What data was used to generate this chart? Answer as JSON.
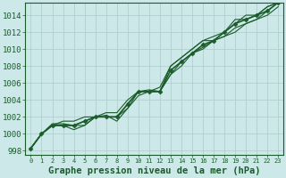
{
  "bg_color": "#cce8e8",
  "grid_color": "#aacccc",
  "line_color": "#1a5c2a",
  "xlabel": "Graphe pression niveau de la mer (hPa)",
  "xlabel_fontsize": 7.5,
  "ylabel_fontsize": 6.5,
  "xtick_fontsize": 5.0,
  "xlim": [
    -0.5,
    23.5
  ],
  "ylim": [
    997.5,
    1015.5
  ],
  "yticks": [
    998,
    1000,
    1002,
    1004,
    1006,
    1008,
    1010,
    1012,
    1014
  ],
  "xticks": [
    0,
    1,
    2,
    3,
    4,
    5,
    6,
    7,
    8,
    9,
    10,
    11,
    12,
    13,
    14,
    15,
    16,
    17,
    18,
    19,
    20,
    21,
    22,
    23
  ],
  "series1": {
    "x": [
      0,
      1,
      2,
      3,
      4,
      5,
      6,
      7,
      8,
      9,
      10,
      11,
      12,
      13,
      14,
      15,
      16,
      17,
      18,
      19,
      20,
      21,
      22,
      23
    ],
    "y": [
      998.3,
      1000.0,
      1001.0,
      1001.0,
      1001.0,
      1001.5,
      1002.0,
      1002.0,
      1002.0,
      1003.5,
      1005.0,
      1005.0,
      1005.0,
      1007.5,
      1008.5,
      1009.5,
      1010.5,
      1011.0,
      1012.0,
      1013.0,
      1013.5,
      1014.0,
      1014.5,
      1015.5
    ],
    "linewidth": 1.2,
    "marker": "D",
    "markersize": 2.5
  },
  "series2": {
    "x": [
      0,
      1,
      2,
      3,
      4,
      5,
      6,
      7,
      8,
      9,
      10,
      11,
      12,
      13,
      14,
      15,
      16,
      17,
      18,
      19,
      20,
      21,
      22,
      23
    ],
    "y": [
      998.3,
      1000.0,
      1001.2,
      1001.2,
      1001.0,
      1001.0,
      1002.0,
      1002.2,
      1001.5,
      1003.0,
      1005.0,
      1005.2,
      1005.0,
      1007.0,
      1008.0,
      1009.5,
      1010.2,
      1011.0,
      1011.5,
      1012.0,
      1013.0,
      1013.5,
      1014.5,
      1015.5
    ],
    "linewidth": 0.8,
    "marker": null,
    "markersize": 0
  },
  "series3": {
    "x": [
      0,
      1,
      2,
      3,
      4,
      5,
      6,
      7,
      8,
      9,
      10,
      11,
      12,
      13,
      14,
      15,
      16,
      17,
      18,
      19,
      20,
      21,
      22,
      23
    ],
    "y": [
      998.3,
      1000.0,
      1001.0,
      1001.5,
      1001.5,
      1002.0,
      1002.0,
      1002.5,
      1002.5,
      1004.0,
      1005.0,
      1005.0,
      1005.5,
      1008.0,
      1009.0,
      1010.0,
      1011.0,
      1011.5,
      1012.0,
      1013.0,
      1014.0,
      1014.0,
      1015.0,
      1015.5
    ],
    "linewidth": 0.8,
    "marker": null,
    "markersize": 0
  },
  "series4": {
    "x": [
      0,
      1,
      2,
      3,
      4,
      5,
      6,
      7,
      8,
      9,
      10,
      11,
      12,
      13,
      14,
      15,
      16,
      17,
      18,
      19,
      20,
      21,
      22,
      23
    ],
    "y": [
      998.3,
      1000.0,
      1001.0,
      1001.0,
      1001.0,
      1001.5,
      1002.0,
      1002.0,
      1002.0,
      1003.5,
      1005.0,
      1005.0,
      1005.0,
      1008.0,
      1009.0,
      1010.0,
      1011.0,
      1011.0,
      1012.0,
      1013.5,
      1013.5,
      1014.0,
      1015.0,
      1015.5
    ],
    "linewidth": 0.8,
    "marker": null,
    "markersize": 0
  },
  "series5": {
    "x": [
      0,
      1,
      2,
      3,
      4,
      5,
      6,
      7,
      8,
      9,
      10,
      11,
      12,
      13,
      14,
      15,
      16,
      17,
      18,
      19,
      20,
      21,
      22,
      23
    ],
    "y": [
      998.3,
      1000.0,
      1001.0,
      1001.0,
      1000.5,
      1001.0,
      1002.0,
      1002.0,
      1002.0,
      1003.0,
      1004.5,
      1005.0,
      1005.0,
      1007.0,
      1008.5,
      1009.5,
      1010.0,
      1011.0,
      1011.5,
      1012.5,
      1013.0,
      1013.5,
      1014.0,
      1015.0
    ],
    "linewidth": 0.8,
    "marker": null,
    "markersize": 0
  }
}
